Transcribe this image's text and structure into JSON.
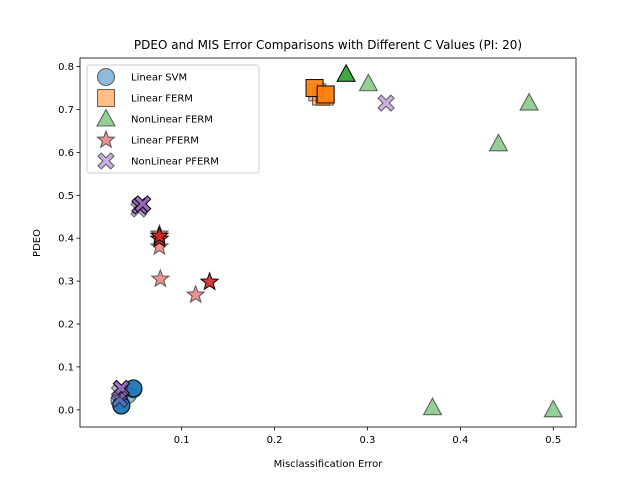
{
  "chart_data": {
    "type": "scatter",
    "title": "PDEO and MIS Error Comparisons with Different C Values (PI: 20)",
    "xlabel": "Misclassification Error",
    "ylabel": "PDEO",
    "xlim": [
      -0.0095,
      0.5245
    ],
    "ylim": [
      -0.04,
      0.82
    ],
    "xticks": [
      0.1,
      0.2,
      0.3,
      0.4,
      0.5
    ],
    "xtick_labels": [
      "0.1",
      "0.2",
      "0.3",
      "0.4",
      "0.5"
    ],
    "yticks": [
      0.0,
      0.1,
      0.2,
      0.3,
      0.4,
      0.5,
      0.6,
      0.7,
      0.8
    ],
    "ytick_labels": [
      "0.0",
      "0.1",
      "0.2",
      "0.3",
      "0.4",
      "0.5",
      "0.6",
      "0.7",
      "0.8"
    ],
    "legend_position": "top-left",
    "grid": false,
    "series": [
      {
        "name": "Linear SVM",
        "marker": "circle",
        "color": "#1f77b4",
        "points": [
          [
            0.035,
            0.012,
            0.5
          ],
          [
            0.033,
            0.023,
            0.5
          ],
          [
            0.042,
            0.035,
            0.5
          ],
          [
            0.048,
            0.048,
            0.5
          ],
          [
            0.035,
            0.01,
            0.9
          ],
          [
            0.048,
            0.05,
            0.9
          ]
        ]
      },
      {
        "name": "Linear FERM",
        "marker": "square",
        "color": "#ff7f0e",
        "points": [
          [
            0.246,
            0.74,
            0.5
          ],
          [
            0.25,
            0.73,
            0.5
          ],
          [
            0.254,
            0.73,
            0.5
          ],
          [
            0.243,
            0.75,
            0.9
          ],
          [
            0.255,
            0.735,
            0.9
          ]
        ]
      },
      {
        "name": "NonLinear FERM",
        "marker": "triangle",
        "color": "#2ca02c",
        "points": [
          [
            0.301,
            0.76,
            0.5
          ],
          [
            0.474,
            0.715,
            0.5
          ],
          [
            0.441,
            0.62,
            0.5
          ],
          [
            0.37,
            0.005,
            0.5
          ],
          [
            0.5,
            0.0,
            0.5
          ],
          [
            0.277,
            0.782,
            0.9
          ]
        ]
      },
      {
        "name": "Linear PFERM",
        "marker": "star",
        "color": "#d62728",
        "points": [
          [
            0.076,
            0.38,
            0.5
          ],
          [
            0.077,
            0.305,
            0.5
          ],
          [
            0.115,
            0.268,
            0.5
          ],
          [
            0.076,
            0.41,
            0.5
          ],
          [
            0.076,
            0.398,
            0.9
          ],
          [
            0.076,
            0.405,
            0.9
          ],
          [
            0.13,
            0.298,
            0.9
          ]
        ]
      },
      {
        "name": "NonLinear PFERM",
        "marker": "x",
        "color": "#9467bd",
        "points": [
          [
            0.32,
            0.715,
            0.5
          ],
          [
            0.054,
            0.468,
            0.5
          ],
          [
            0.055,
            0.475,
            0.9
          ],
          [
            0.058,
            0.48,
            0.9
          ],
          [
            0.033,
            0.04,
            0.5
          ],
          [
            0.035,
            0.05,
            0.9
          ],
          [
            0.033,
            0.025,
            0.5
          ]
        ]
      }
    ]
  }
}
